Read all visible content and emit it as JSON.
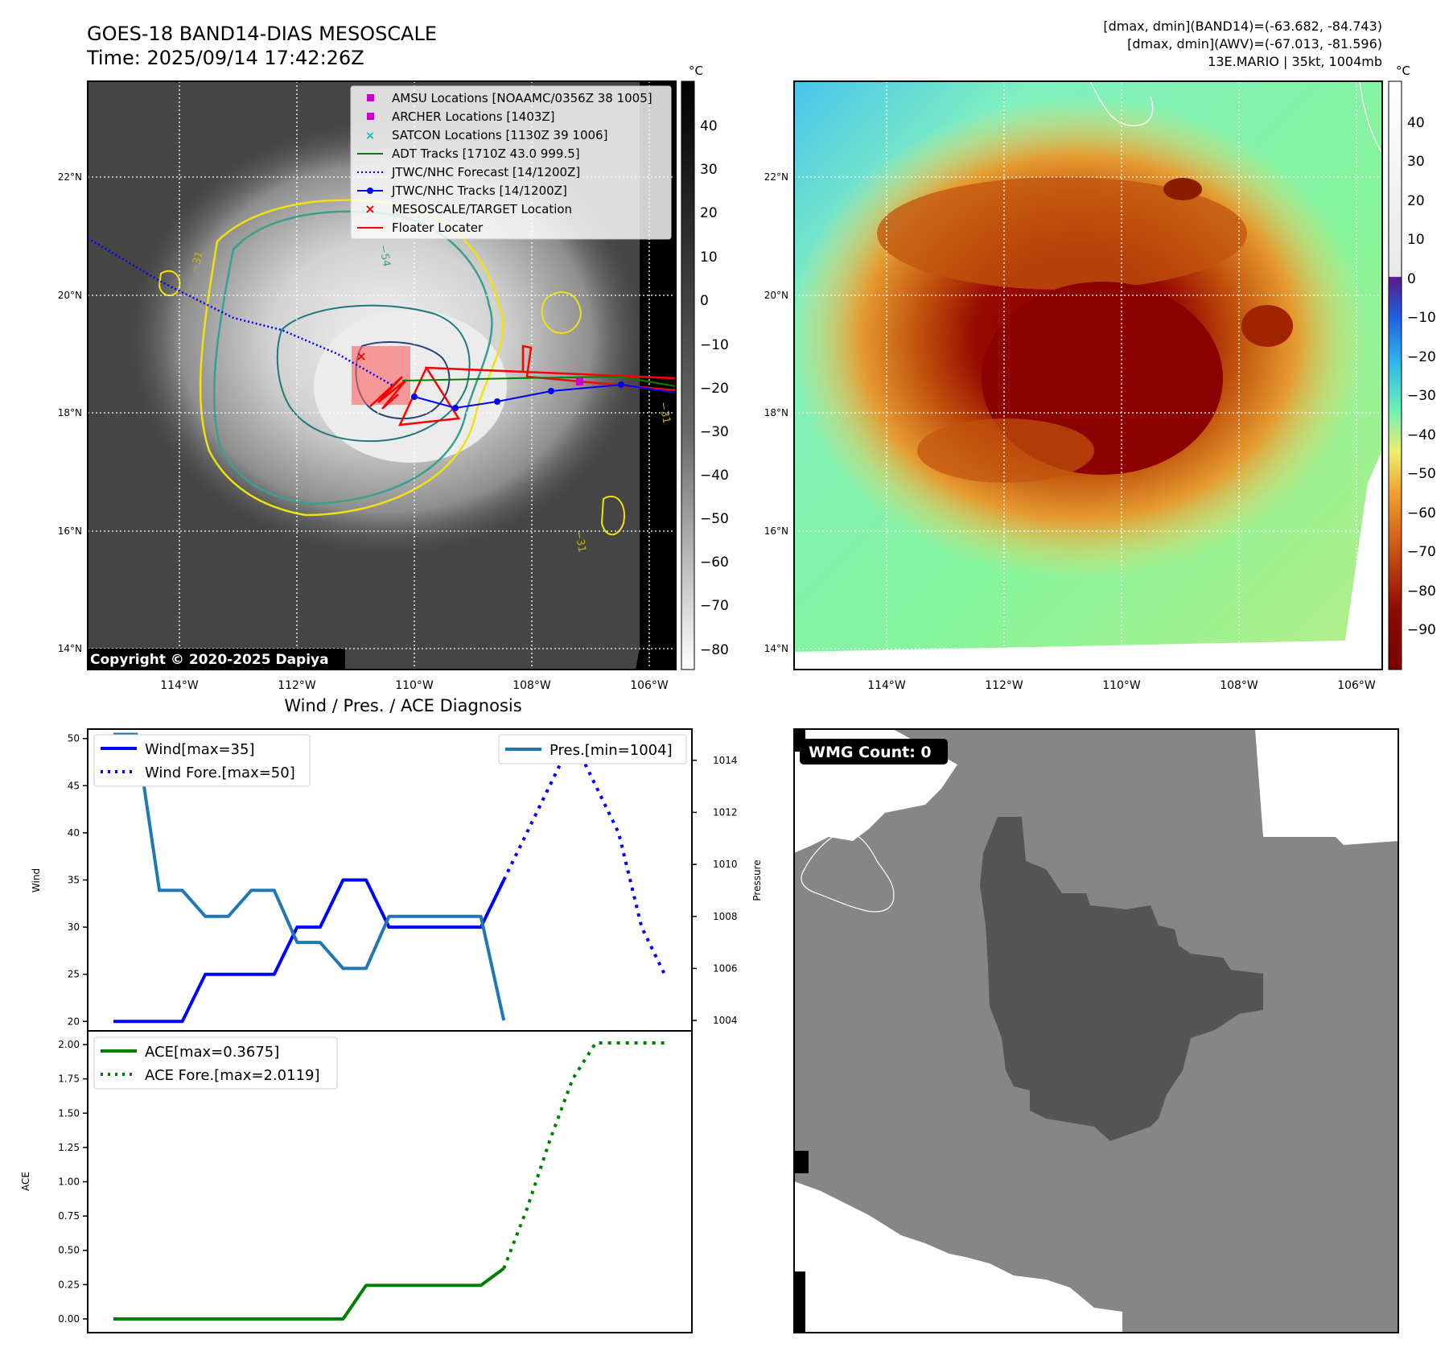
{
  "header": {
    "title": "GOES-18 BAND14-DIAS MESOSCALE",
    "time": "Time: 2025/09/14 17:42:26Z",
    "stats_band14": "[dmax, dmin](BAND14)=(-63.682, -84.743)",
    "stats_awv": "[dmax, dmin](AWV)=(-67.013, -81.596)",
    "storm": "13E.MARIO | 35kt, 1004mb"
  },
  "maps": {
    "lat_labels": [
      "22°N",
      "20°N",
      "18°N",
      "16°N",
      "14°N"
    ],
    "lon_labels": [
      "114°W",
      "112°W",
      "110°W",
      "108°W",
      "106°W"
    ],
    "copyright": "Copyright © 2020-2025 Dapiya",
    "colorbar_unit": "°C",
    "gray_colorbar_ticks": [
      "40",
      "30",
      "20",
      "10",
      "0",
      "−10",
      "−20",
      "−30",
      "−40",
      "−50",
      "−60",
      "−70",
      "−80"
    ],
    "color_colorbar_ticks": [
      "40",
      "30",
      "20",
      "10",
      "0",
      "−10",
      "−20",
      "−30",
      "−40",
      "−50",
      "−60",
      "−70",
      "−80",
      "−90"
    ],
    "contour_labels": [
      "−31",
      "−54"
    ],
    "legend": [
      {
        "label": "AMSU Locations [NOAAMC/0356Z 38 1005]",
        "color": "#cc00cc",
        "marker": "square"
      },
      {
        "label": "ARCHER Locations [1403Z]",
        "color": "#cc00cc",
        "marker": "square"
      },
      {
        "label": "SATCON Locations [1130Z 39 1006]",
        "color": "#00bfbf",
        "marker": "x"
      },
      {
        "label": "ADT Tracks [1710Z 43.0 999.5]",
        "color": "#008000",
        "marker": "line"
      },
      {
        "label": "JTWC/NHC Forecast [14/1200Z]",
        "color": "#0000ff",
        "marker": "dotted"
      },
      {
        "label": "JTWC/NHC Tracks [14/1200Z]",
        "color": "#0000ff",
        "marker": "line-dot"
      },
      {
        "label": "MESOSCALE/TARGET Location",
        "color": "#ff0000",
        "marker": "x"
      },
      {
        "label": "Floater Locater",
        "color": "#ff0000",
        "marker": "line"
      }
    ],
    "wmg_label": "WMG Count: 0"
  },
  "chart_data": [
    {
      "type": "line",
      "title": "Wind / Pres. / ACE Diagnosis",
      "ylabel": "Wind",
      "ylabel_right": "Pressure",
      "x": [
        0,
        1,
        2,
        3,
        4,
        5,
        6,
        7,
        8,
        9,
        10,
        11,
        12,
        13,
        14,
        15,
        16,
        17,
        18,
        19,
        20,
        21,
        22,
        23,
        24
      ],
      "ylim": [
        19,
        51
      ],
      "ylim_right": [
        1003.6,
        1015.2
      ],
      "yticks": [
        20,
        25,
        30,
        35,
        40,
        45,
        50
      ],
      "yticks_right": [
        1004,
        1006,
        1008,
        1010,
        1012,
        1014
      ],
      "series": [
        {
          "name": "Wind[max=35]",
          "axis": "left",
          "style": "solid",
          "color": "#0000ff",
          "x": [
            0,
            1,
            2,
            3,
            4,
            5,
            6,
            7,
            8,
            9,
            10,
            11,
            12,
            13,
            14,
            15,
            16,
            17
          ],
          "values": [
            20,
            20,
            20,
            20,
            25,
            25,
            25,
            25,
            30,
            30,
            35,
            35,
            30,
            30,
            30,
            30,
            30,
            35
          ]
        },
        {
          "name": "Wind Fore.[max=50]",
          "axis": "left",
          "style": "dotted",
          "color": "#0000ff",
          "x": [
            17,
            18,
            19,
            20,
            21,
            22,
            23,
            24
          ],
          "values": [
            35,
            40,
            45,
            50,
            45,
            40,
            30,
            25
          ]
        },
        {
          "name": "Pres.[min=1004]",
          "axis": "right",
          "style": "solid",
          "color": "#1f77b4",
          "x": [
            0,
            1,
            2,
            3,
            4,
            5,
            6,
            7,
            8,
            9,
            10,
            11,
            12,
            13,
            14,
            15,
            16,
            17
          ],
          "values": [
            1015,
            1015,
            1009,
            1009,
            1008,
            1008,
            1009,
            1009,
            1007,
            1007,
            1006,
            1006,
            1008,
            1008,
            1008,
            1008,
            1008,
            1004
          ]
        }
      ]
    },
    {
      "type": "line",
      "ylabel": "ACE",
      "x": [
        0,
        1,
        2,
        3,
        4,
        5,
        6,
        7,
        8,
        9,
        10,
        11,
        12,
        13,
        14,
        15,
        16,
        17,
        18,
        19,
        20,
        21,
        22,
        23,
        24
      ],
      "ylim": [
        -0.1,
        2.1
      ],
      "yticks": [
        "0.00",
        "0.25",
        "0.50",
        "0.75",
        "1.00",
        "1.25",
        "1.50",
        "1.75",
        "2.00"
      ],
      "series": [
        {
          "name": "ACE[max=0.3675]",
          "style": "solid",
          "color": "#008000",
          "x": [
            0,
            1,
            2,
            3,
            4,
            5,
            6,
            7,
            8,
            9,
            10,
            11,
            12,
            13,
            14,
            15,
            16,
            17
          ],
          "values": [
            0,
            0,
            0,
            0,
            0,
            0,
            0,
            0,
            0,
            0,
            0,
            0.245,
            0.245,
            0.245,
            0.245,
            0.245,
            0.245,
            0.3675
          ]
        },
        {
          "name": "ACE Fore.[max=2.0119]",
          "style": "dotted",
          "color": "#008000",
          "x": [
            17,
            18,
            19,
            20,
            21,
            22,
            23,
            24
          ],
          "values": [
            0.3675,
            0.8,
            1.3,
            1.75,
            2.0119,
            2.0119,
            2.0119,
            2.0119
          ]
        }
      ]
    }
  ]
}
